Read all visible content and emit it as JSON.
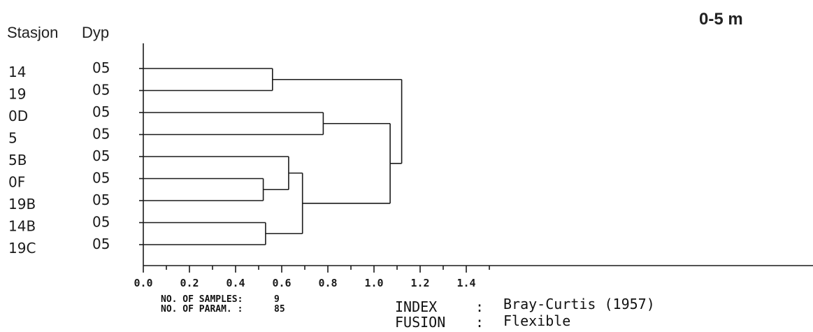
{
  "corner_label": "0-5 m",
  "columns": {
    "station": "Stasjon",
    "depth": "Dyp"
  },
  "chart_data": {
    "type": "dendrogram",
    "leaves": [
      {
        "station": "14",
        "depth": "05"
      },
      {
        "station": "19",
        "depth": "05"
      },
      {
        "station": "0D",
        "depth": "05"
      },
      {
        "station": "5",
        "depth": "05"
      },
      {
        "station": "5B",
        "depth": "05"
      },
      {
        "station": "0F",
        "depth": "05"
      },
      {
        "station": "19B",
        "depth": "05"
      },
      {
        "station": "14B",
        "depth": "05"
      },
      {
        "station": "19C",
        "depth": "05"
      }
    ],
    "merges": [
      {
        "id": "A",
        "left": "L5",
        "right": "L6",
        "height": 0.52
      },
      {
        "id": "B",
        "left": "L7",
        "right": "L8",
        "height": 0.53
      },
      {
        "id": "C",
        "left": "L0",
        "right": "L1",
        "height": 0.56
      },
      {
        "id": "D",
        "left": "L4",
        "right": "A",
        "height": 0.63
      },
      {
        "id": "E",
        "left": "D",
        "right": "B",
        "height": 0.69
      },
      {
        "id": "F",
        "left": "L2",
        "right": "L3",
        "height": 0.78
      },
      {
        "id": "G",
        "left": "F",
        "right": "E",
        "height": 1.07
      },
      {
        "id": "H",
        "left": "C",
        "right": "G",
        "height": 1.12
      }
    ],
    "xlim": [
      0.0,
      1.5
    ],
    "xticks": [
      0.0,
      0.2,
      0.4,
      0.6,
      0.8,
      1.0,
      1.2,
      1.4
    ],
    "xtick_labels": [
      "0.0",
      "0.2",
      "0.4",
      "0.6",
      "0.8",
      "1.0",
      "1.2",
      "1.4"
    ]
  },
  "footer": {
    "samples_label": "NO. OF SAMPLES:",
    "samples_value": "9",
    "params_label": "NO. OF PARAM. :",
    "params_value": "85",
    "index_label": "INDEX",
    "index_sep": ":",
    "index_value": "Bray-Curtis (1957)",
    "fusion_label": "FUSION",
    "fusion_sep": ":",
    "fusion_value": "Flexible"
  }
}
